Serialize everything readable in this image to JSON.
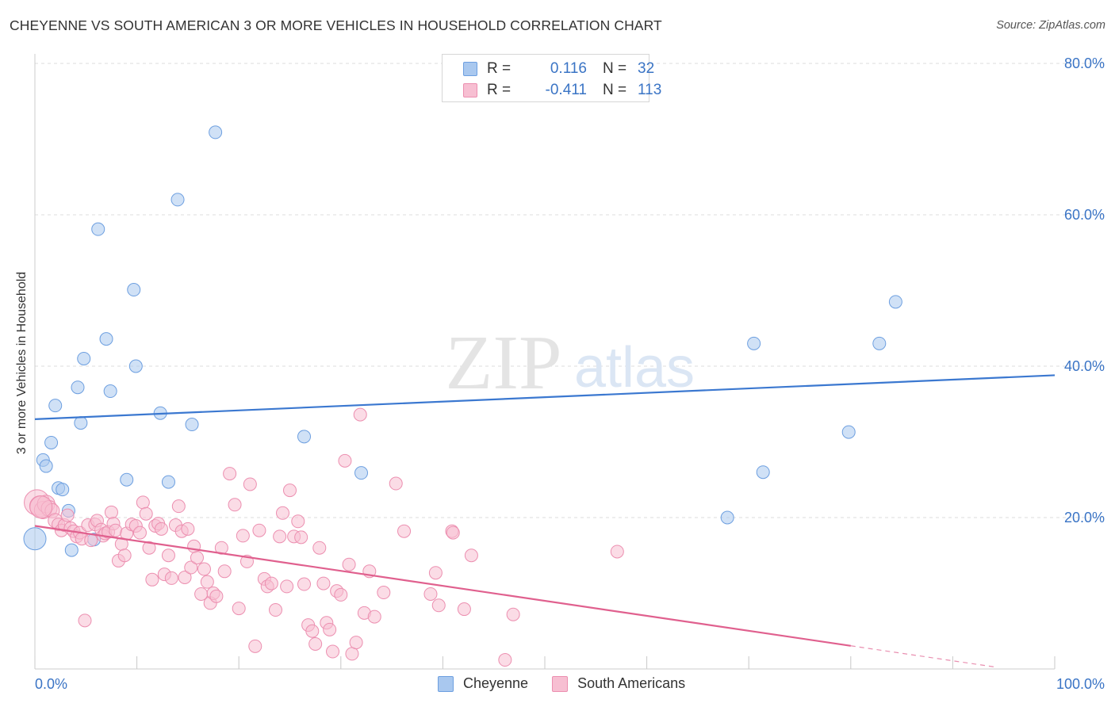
{
  "title": "CHEYENNE VS SOUTH AMERICAN 3 OR MORE VEHICLES IN HOUSEHOLD CORRELATION CHART",
  "source": "Source: ZipAtlas.com",
  "watermark": {
    "zip": "ZIP",
    "atlas": "atlas"
  },
  "legend_top": {
    "rows": [
      {
        "r_label": "R =",
        "r_value": "0.116",
        "n_label": "N =",
        "n_value": "32",
        "color": "#a9c8ef",
        "border": "#6d9fe0"
      },
      {
        "r_label": "R =",
        "r_value": "-0.411",
        "n_label": "N =",
        "n_value": "113",
        "color": "#f7bfd2",
        "border": "#ec8fb0"
      }
    ]
  },
  "legend_bottom": [
    {
      "name": "Cheyenne",
      "color": "#a9c8ef",
      "border": "#6d9fe0"
    },
    {
      "name": "South Americans",
      "color": "#f7bfd2",
      "border": "#ec8fb0"
    }
  ],
  "chart_data": {
    "type": "scatter",
    "title": "CHEYENNE VS SOUTH AMERICAN 3 OR MORE VEHICLES IN HOUSEHOLD CORRELATION CHART",
    "xlabel": "",
    "ylabel": "3 or more Vehicles in Household",
    "xlim": [
      0,
      100
    ],
    "ylim": [
      0,
      84
    ],
    "x_tick_labels": [
      {
        "x": 0,
        "label": "0.0%"
      },
      {
        "x": 100,
        "label": "100.0%"
      }
    ],
    "y_tick_labels": [
      {
        "y": 20,
        "label": "20.0%"
      },
      {
        "y": 40,
        "label": "40.0%"
      },
      {
        "y": 60,
        "label": "60.0%"
      },
      {
        "y": 80,
        "label": "80.0%"
      }
    ],
    "grid": true,
    "legend_position": "top-center",
    "series": [
      {
        "name": "Cheyenne",
        "color": "#a9c8ef",
        "edge_color": "#6d9fe0",
        "line_color": "#3b78d0",
        "trend": {
          "x": [
            0,
            100
          ],
          "y": [
            33.0,
            38.8
          ],
          "dashed_from": null
        },
        "points": [
          [
            0.0,
            17.2
          ],
          [
            0.8,
            27.6
          ],
          [
            1.1,
            26.8
          ],
          [
            1.6,
            29.9
          ],
          [
            2.0,
            34.8
          ],
          [
            2.3,
            23.9
          ],
          [
            2.7,
            23.7
          ],
          [
            3.3,
            20.9
          ],
          [
            3.6,
            15.7
          ],
          [
            4.2,
            37.2
          ],
          [
            4.5,
            32.5
          ],
          [
            4.8,
            41.0
          ],
          [
            5.8,
            17.1
          ],
          [
            6.2,
            58.1
          ],
          [
            7.0,
            43.6
          ],
          [
            7.4,
            36.7
          ],
          [
            9.0,
            25.0
          ],
          [
            9.7,
            50.1
          ],
          [
            9.9,
            40.0
          ],
          [
            12.3,
            33.8
          ],
          [
            13.1,
            24.7
          ],
          [
            14.0,
            62.0
          ],
          [
            15.4,
            32.3
          ],
          [
            17.7,
            70.9
          ],
          [
            26.4,
            30.7
          ],
          [
            32.0,
            25.9
          ],
          [
            67.9,
            20.0
          ],
          [
            70.5,
            43.0
          ],
          [
            71.4,
            26.0
          ],
          [
            79.8,
            31.3
          ],
          [
            82.8,
            43.0
          ],
          [
            84.4,
            48.5
          ]
        ],
        "point_sizes": [
          28,
          16,
          16,
          16,
          16,
          16,
          16,
          16,
          16,
          16,
          16,
          16,
          16,
          16,
          16,
          16,
          16,
          16,
          16,
          16,
          16,
          16,
          16,
          16,
          16,
          16,
          16,
          16,
          16,
          16,
          16,
          16
        ]
      },
      {
        "name": "South Americans",
        "color": "#f7bfd2",
        "edge_color": "#ec8fb0",
        "line_color": "#e0608e",
        "trend": {
          "x": [
            0,
            100
          ],
          "y": [
            18.9,
            -0.9
          ],
          "dashed_from": 80
        },
        "points": [
          [
            0.2,
            22.0
          ],
          [
            0.5,
            21.5
          ],
          [
            0.8,
            21.0
          ],
          [
            1.1,
            21.8
          ],
          [
            1.4,
            21.2
          ],
          [
            1.7,
            20.9
          ],
          [
            2.0,
            19.6
          ],
          [
            2.3,
            19.1
          ],
          [
            2.6,
            18.3
          ],
          [
            2.9,
            19.0
          ],
          [
            3.2,
            20.3
          ],
          [
            3.5,
            18.6
          ],
          [
            3.8,
            18.2
          ],
          [
            4.1,
            17.5
          ],
          [
            4.4,
            18.0
          ],
          [
            4.6,
            17.2
          ],
          [
            4.9,
            6.4
          ],
          [
            5.2,
            19.0
          ],
          [
            5.5,
            17.0
          ],
          [
            5.9,
            19.1
          ],
          [
            6.1,
            19.6
          ],
          [
            6.5,
            18.4
          ],
          [
            6.7,
            17.6
          ],
          [
            6.9,
            17.9
          ],
          [
            7.2,
            18.1
          ],
          [
            7.5,
            20.7
          ],
          [
            7.7,
            19.2
          ],
          [
            7.9,
            18.3
          ],
          [
            8.2,
            14.3
          ],
          [
            8.5,
            16.5
          ],
          [
            8.8,
            15.0
          ],
          [
            9.0,
            17.9
          ],
          [
            9.5,
            19.1
          ],
          [
            9.9,
            18.9
          ],
          [
            10.3,
            18.0
          ],
          [
            10.6,
            22.0
          ],
          [
            10.9,
            20.5
          ],
          [
            11.2,
            16.0
          ],
          [
            11.5,
            11.8
          ],
          [
            11.8,
            18.9
          ],
          [
            12.1,
            19.2
          ],
          [
            12.4,
            18.5
          ],
          [
            12.7,
            12.5
          ],
          [
            13.1,
            15.0
          ],
          [
            13.4,
            12.0
          ],
          [
            13.8,
            19.0
          ],
          [
            14.1,
            21.5
          ],
          [
            14.4,
            18.2
          ],
          [
            14.7,
            12.1
          ],
          [
            15.0,
            18.5
          ],
          [
            15.3,
            13.4
          ],
          [
            15.6,
            16.2
          ],
          [
            15.9,
            14.7
          ],
          [
            16.3,
            9.9
          ],
          [
            16.6,
            13.2
          ],
          [
            16.9,
            11.5
          ],
          [
            17.2,
            8.7
          ],
          [
            17.5,
            10.0
          ],
          [
            17.8,
            9.6
          ],
          [
            18.3,
            16.0
          ],
          [
            18.6,
            12.9
          ],
          [
            19.1,
            25.8
          ],
          [
            19.6,
            21.7
          ],
          [
            20.0,
            8.0
          ],
          [
            20.4,
            17.6
          ],
          [
            20.8,
            14.2
          ],
          [
            21.1,
            24.4
          ],
          [
            21.6,
            3.0
          ],
          [
            22.0,
            18.3
          ],
          [
            22.5,
            11.9
          ],
          [
            22.8,
            10.9
          ],
          [
            23.2,
            11.3
          ],
          [
            23.6,
            7.8
          ],
          [
            24.0,
            17.5
          ],
          [
            24.3,
            20.6
          ],
          [
            24.7,
            10.9
          ],
          [
            25.0,
            23.6
          ],
          [
            25.4,
            17.5
          ],
          [
            25.8,
            19.5
          ],
          [
            26.1,
            17.4
          ],
          [
            26.4,
            11.2
          ],
          [
            26.8,
            5.8
          ],
          [
            27.2,
            5.0
          ],
          [
            27.5,
            3.3
          ],
          [
            27.9,
            16.0
          ],
          [
            28.3,
            11.3
          ],
          [
            28.6,
            6.1
          ],
          [
            28.9,
            5.2
          ],
          [
            29.2,
            2.3
          ],
          [
            29.6,
            10.3
          ],
          [
            30.0,
            9.8
          ],
          [
            30.4,
            27.5
          ],
          [
            30.8,
            13.8
          ],
          [
            31.1,
            2.0
          ],
          [
            31.5,
            3.5
          ],
          [
            31.9,
            33.6
          ],
          [
            32.3,
            7.4
          ],
          [
            32.8,
            12.9
          ],
          [
            33.3,
            6.9
          ],
          [
            34.2,
            10.1
          ],
          [
            35.4,
            24.5
          ],
          [
            36.2,
            18.2
          ],
          [
            38.8,
            9.9
          ],
          [
            39.3,
            12.7
          ],
          [
            39.6,
            8.4
          ],
          [
            40.9,
            18.2
          ],
          [
            42.1,
            7.9
          ],
          [
            41.0,
            18.0
          ],
          [
            42.8,
            15.0
          ],
          [
            46.1,
            1.2
          ],
          [
            46.9,
            7.2
          ],
          [
            57.1,
            15.5
          ],
          [
            0.6,
            21.4
          ]
        ],
        "point_sizes": [
          32,
          26,
          22,
          22,
          20,
          18,
          18,
          16,
          16,
          16,
          16,
          16,
          16,
          16,
          16,
          16,
          16,
          16,
          16,
          16,
          16,
          16,
          16,
          16,
          16,
          16,
          16,
          16,
          16,
          16,
          16,
          16,
          16,
          16,
          16,
          16,
          16,
          16,
          16,
          16,
          16,
          16,
          16,
          16,
          16,
          16,
          16,
          16,
          16,
          16,
          16,
          16,
          16,
          16,
          16,
          16,
          16,
          16,
          16,
          16,
          16,
          16,
          16,
          16,
          16,
          16,
          16,
          16,
          16,
          16,
          16,
          16,
          16,
          16,
          16,
          16,
          16,
          16,
          16,
          16,
          16,
          16,
          16,
          16,
          16,
          16,
          16,
          16,
          16,
          16,
          16,
          16,
          16,
          16,
          16,
          16,
          16,
          16,
          16,
          16,
          16,
          16,
          16,
          16,
          16,
          16,
          16,
          16,
          16,
          16,
          16,
          16,
          28
        ]
      }
    ]
  }
}
